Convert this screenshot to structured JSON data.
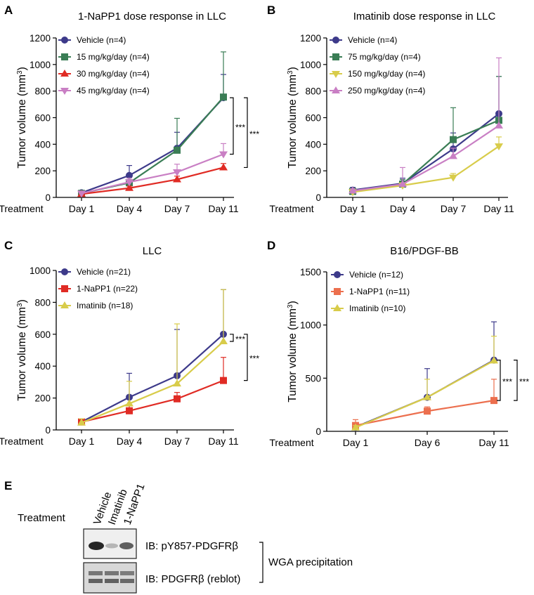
{
  "colors": {
    "navy": "#3d3a8a",
    "green": "#3a7d55",
    "red": "#e02b24",
    "pink": "#c97fc4",
    "olive": "#d8cc4a",
    "orange": "#ec6f4e",
    "axis": "#000000"
  },
  "chart_data": [
    {
      "panel": "A",
      "type": "line",
      "title": "1-NaPP1 dose response in LLC",
      "ylabel": "Tumor volume (mm³)",
      "xlabel": "Treatment",
      "categories": [
        "Day 1",
        "Day 4",
        "Day 7",
        "Day 11"
      ],
      "ylim": [
        0,
        1200
      ],
      "yticks": [
        "0",
        "200",
        "400",
        "600",
        "800",
        "1000",
        "1200"
      ],
      "legend": "top-left",
      "series": [
        {
          "name": "Vehicle (n=4)",
          "color": "navy",
          "marker": "circle",
          "values": [
            35,
            165,
            370,
            750
          ],
          "err": [
            10,
            75,
            120,
            175
          ]
        },
        {
          "name": "15 mg/kg/day (n=4)",
          "color": "green",
          "marker": "square",
          "values": [
            30,
            110,
            355,
            755
          ],
          "err": [
            8,
            20,
            240,
            340
          ]
        },
        {
          "name": "30 mg/kg/day (n=4)",
          "color": "red",
          "marker": "triangle-up",
          "values": [
            25,
            70,
            135,
            225
          ],
          "err": [
            5,
            15,
            25,
            30
          ]
        },
        {
          "name": "45 mg/kg/day (n=4)",
          "color": "pink",
          "marker": "triangle-down",
          "values": [
            30,
            115,
            190,
            325
          ],
          "err": [
            8,
            30,
            60,
            80
          ]
        }
      ],
      "annotations": [
        "***",
        "***"
      ]
    },
    {
      "panel": "B",
      "type": "line",
      "title": "Imatinib dose response in LLC",
      "ylabel": "Tumor volume (mm³)",
      "xlabel": "Treatment",
      "categories": [
        "Day 1",
        "Day 4",
        "Day 7",
        "Day 11"
      ],
      "ylim": [
        0,
        1200
      ],
      "yticks": [
        "0",
        "200",
        "400",
        "600",
        "800",
        "1000",
        "1200"
      ],
      "legend": "top-left",
      "series": [
        {
          "name": "Vehicle (n=4)",
          "color": "navy",
          "marker": "circle",
          "values": [
            55,
            105,
            365,
            630
          ],
          "err": [
            20,
            40,
            120,
            280
          ]
        },
        {
          "name": "75 mg/kg/day (n=4)",
          "color": "green",
          "marker": "square",
          "values": [
            45,
            100,
            435,
            580
          ],
          "err": [
            15,
            35,
            240,
            330
          ]
        },
        {
          "name": "150 mg/kg/day (n=4)",
          "color": "olive",
          "marker": "triangle-down",
          "values": [
            40,
            90,
            150,
            385
          ],
          "err": [
            10,
            20,
            30,
            70
          ]
        },
        {
          "name": "250 mg/kg/day (n=4)",
          "color": "pink",
          "marker": "triangle-up",
          "values": [
            50,
            100,
            310,
            540
          ],
          "err": [
            15,
            125,
            60,
            510
          ]
        }
      ]
    },
    {
      "panel": "C",
      "type": "line",
      "title": "LLC",
      "ylabel": "Tumor volume (mm³)",
      "xlabel": "Treatment",
      "categories": [
        "Day 1",
        "Day 4",
        "Day 7",
        "Day 11"
      ],
      "ylim": [
        0,
        1000
      ],
      "yticks": [
        "0",
        "200",
        "400",
        "600",
        "800",
        "1000"
      ],
      "legend": "top-left",
      "series": [
        {
          "name": "Vehicle (n=21)",
          "color": "navy",
          "marker": "circle",
          "values": [
            50,
            205,
            340,
            600
          ],
          "err": [
            20,
            150,
            290,
            280
          ]
        },
        {
          "name": "1-NaPP1 (n=22)",
          "color": "red",
          "marker": "square",
          "values": [
            50,
            120,
            195,
            310
          ],
          "err": [
            15,
            30,
            40,
            145
          ]
        },
        {
          "name": "Imatinib (n=18)",
          "color": "olive",
          "marker": "triangle-up",
          "values": [
            45,
            165,
            290,
            555
          ],
          "err": [
            25,
            140,
            375,
            325
          ]
        }
      ],
      "annotations": [
        "***",
        "***"
      ]
    },
    {
      "panel": "D",
      "type": "line",
      "title": "B16/PDGF-BB",
      "ylabel": "Tumor volume (mm³)",
      "xlabel": "Treatment",
      "categories": [
        "Day 1",
        "Day 6",
        "Day 11"
      ],
      "ylim": [
        0,
        1500
      ],
      "yticks": [
        "0",
        "500",
        "1000",
        "1500"
      ],
      "legend": "top-left",
      "series": [
        {
          "name": "Vehicle (n=12)",
          "color": "navy",
          "marker": "circle",
          "values": [
            40,
            320,
            670
          ],
          "err": [
            30,
            270,
            360
          ]
        },
        {
          "name": "1-NaPP1 (n=11)",
          "color": "orange",
          "marker": "square",
          "values": [
            55,
            190,
            290
          ],
          "err": [
            55,
            40,
            200
          ]
        },
        {
          "name": "Imatinib (n=10)",
          "color": "olive",
          "marker": "triangle-up",
          "values": [
            35,
            320,
            665
          ],
          "err": [
            20,
            170,
            230
          ]
        }
      ],
      "annotations": [
        "***",
        "***"
      ]
    }
  ],
  "panel_e": {
    "letter": "E",
    "treatment_label": "Treatment",
    "lanes": [
      "Vehicle",
      "Imatinib",
      "1-NaPP1"
    ],
    "blots": [
      {
        "label": "IB: pY857-PDGFRβ",
        "intensity": [
          0.95,
          0.3,
          0.7
        ]
      },
      {
        "label": "IB: PDGFRβ (reblot)",
        "intensity": [
          0.8,
          0.8,
          0.75
        ]
      }
    ],
    "group_label": "WGA precipitation"
  }
}
